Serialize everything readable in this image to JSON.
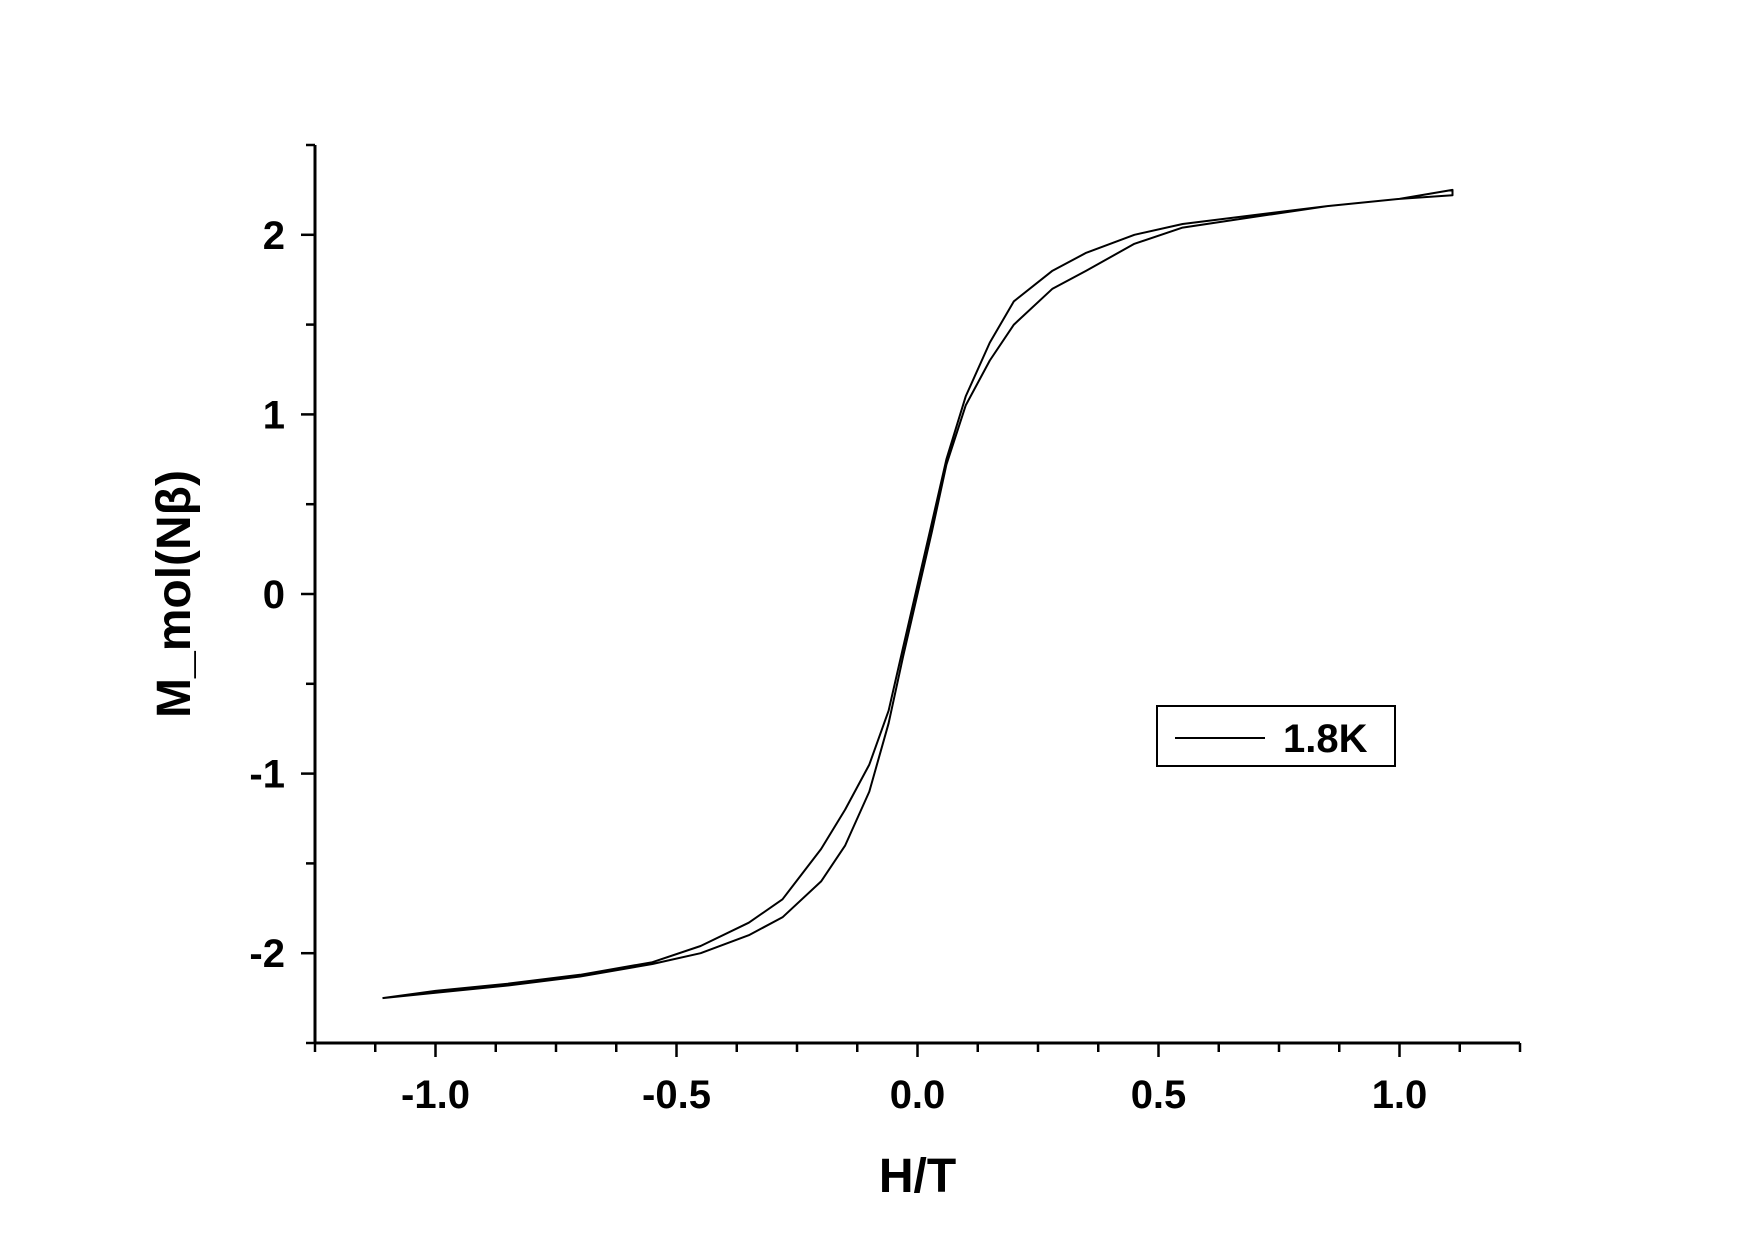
{
  "chart_data": {
    "type": "line",
    "xlabel": "H/T",
    "ylabel": "M_mol(Nβ)",
    "xlim": [
      -1.25,
      1.25
    ],
    "ylim": [
      -2.5,
      2.5
    ],
    "x_ticks": [
      -1.0,
      -0.5,
      0.0,
      0.5,
      1.0
    ],
    "x_tick_labels": [
      "-1.0",
      "-0.5",
      "0.0",
      "0.5",
      "1.0"
    ],
    "y_ticks": [
      -2,
      -1,
      0,
      1,
      2
    ],
    "y_tick_labels": [
      "-2",
      "-1",
      "0",
      "1",
      "2"
    ],
    "grid": false,
    "legend_position": "center-right",
    "series": [
      {
        "name": "1.8K",
        "color": "#000000",
        "x": [
          -1.11,
          -1.0,
          -0.85,
          -0.7,
          -0.55,
          -0.45,
          -0.35,
          -0.28,
          -0.2,
          -0.15,
          -0.1,
          -0.06,
          -0.03,
          0.0,
          0.03,
          0.06,
          0.1,
          0.15,
          0.2,
          0.28,
          0.35,
          0.45,
          0.55,
          0.7,
          0.85,
          1.0,
          1.11,
          1.11,
          1.0,
          0.85,
          0.7,
          0.55,
          0.45,
          0.35,
          0.28,
          0.2,
          0.15,
          0.1,
          0.06,
          0.03,
          0.0,
          -0.03,
          -0.06,
          -0.1,
          -0.15,
          -0.2,
          -0.28,
          -0.35,
          -0.45,
          -0.55,
          -0.7,
          -0.85,
          -1.0,
          -1.11
        ],
        "y": [
          -2.25,
          -2.22,
          -2.18,
          -2.13,
          -2.06,
          -2.0,
          -1.9,
          -1.8,
          -1.6,
          -1.4,
          -1.1,
          -0.72,
          -0.35,
          0.0,
          0.35,
          0.72,
          1.05,
          1.3,
          1.5,
          1.7,
          1.8,
          1.95,
          2.04,
          2.1,
          2.16,
          2.2,
          2.22,
          2.25,
          2.2,
          2.16,
          2.11,
          2.06,
          2.0,
          1.9,
          1.8,
          1.63,
          1.4,
          1.1,
          0.75,
          0.4,
          0.05,
          -0.3,
          -0.65,
          -0.95,
          -1.2,
          -1.42,
          -1.7,
          -1.83,
          -1.96,
          -2.05,
          -2.12,
          -2.17,
          -2.21,
          -2.25
        ]
      }
    ]
  }
}
